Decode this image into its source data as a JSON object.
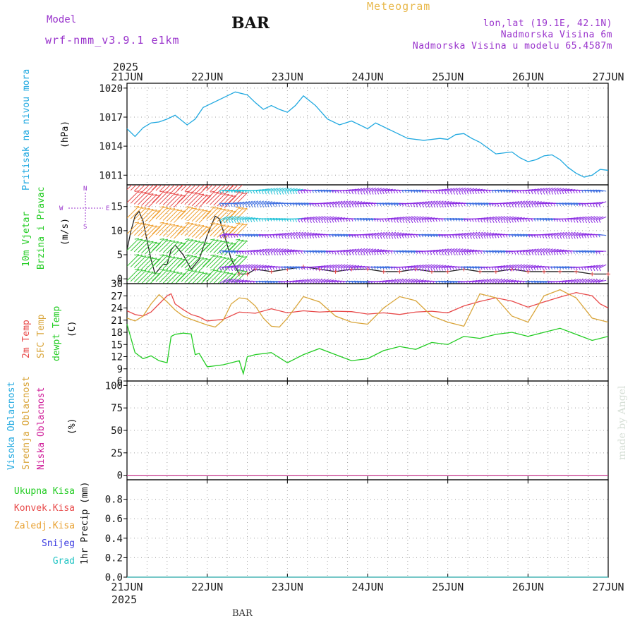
{
  "header": {
    "model_label": "Model",
    "model_name": "wrf-nmm_v3.9.1 e1km",
    "station": "BAR",
    "title": "Meteogram",
    "lonlat": "lon,lat (19.1E, 42.1N)",
    "elevation": "Nadmorska Visina 6m",
    "model_elevation": "Nadmorska Visina u modelu 65.4587m"
  },
  "footer": {
    "station": "BAR"
  },
  "watermark": "made by Angel",
  "colors": {
    "pressure": "#1fa8e0",
    "t2m": "#e84a4a",
    "sfc": "#d9a53a",
    "dewpt": "#22cc22",
    "wind_purple": "#8a2be2",
    "wind_blue": "#3f6fe0",
    "wind_cyan": "#27c3d8",
    "wind_green": "#35c735",
    "wind_orange": "#f0a030",
    "wind_red": "#e84a4a",
    "label_cyan": "#1fa8e0",
    "label_green": "#22cc22",
    "label_orange": "#e8a030",
    "label_red": "#e84a4a",
    "label_magenta": "#d0209a",
    "label_blue": "#3a3ae0",
    "label_teal": "#22c4c4",
    "label_purple": "#9933cc"
  },
  "time_axis": {
    "year": "2025",
    "ticks": [
      "21JUN",
      "22JUN",
      "23JUN",
      "24JUN",
      "25JUN",
      "26JUN",
      "27JUN"
    ]
  },
  "panels": {
    "pressure": {
      "label": "Pritisak na nivou mora",
      "unit": "(hPa)"
    },
    "wind": {
      "label_line1": "10m Vjetar",
      "label_line2": "Brzina i Pravac",
      "unit": "(m/s)",
      "compass": {
        "n": "N",
        "s": "S",
        "e": "E",
        "w": "W"
      }
    },
    "temp": {
      "label_2m": "2m Temp",
      "label_sfc": "SFC Temp",
      "label_dew": "dewpt Temp",
      "unit": "(C)"
    },
    "cloud": {
      "label_high": "Visoka Oblacnost",
      "label_mid": "Srednja Oblacnost",
      "label_low": "Niska Oblacnost",
      "unit": "(%)"
    },
    "precip": {
      "unit": "1hr Precip (mm)",
      "legend": [
        "Ukupna Kisa",
        "Konvek.Kisa",
        "Zaledj.Kisa",
        "Snijeg",
        "Grad"
      ]
    }
  },
  "chart_data": [
    {
      "type": "line",
      "title": "",
      "ylabel": "Pritisak na nivou mora (hPa)",
      "ylim": [
        1010,
        1020.5
      ],
      "yticks": [
        1011,
        1014,
        1017,
        1020
      ],
      "grid": true,
      "x_unit": "days since 21JUN 00UTC",
      "series": [
        {
          "name": "Pritisak na nivou mora",
          "x": [
            0,
            0.1,
            0.2,
            0.3,
            0.4,
            0.5,
            0.6,
            0.75,
            0.85,
            0.95,
            1.0,
            1.1,
            1.2,
            1.35,
            1.5,
            1.6,
            1.7,
            1.8,
            1.9,
            2.0,
            2.1,
            2.2,
            2.35,
            2.5,
            2.65,
            2.8,
            2.9,
            3.0,
            3.1,
            3.3,
            3.5,
            3.7,
            3.9,
            4.0,
            4.1,
            4.2,
            4.3,
            4.4,
            4.6,
            4.8,
            4.9,
            5.0,
            5.1,
            5.2,
            5.3,
            5.4,
            5.5,
            5.6,
            5.7,
            5.8,
            5.9,
            6.0
          ],
          "values": [
            1015.8,
            1015.0,
            1015.9,
            1016.4,
            1016.5,
            1016.8,
            1017.2,
            1016.2,
            1016.8,
            1018.0,
            1018.2,
            1018.6,
            1019.0,
            1019.6,
            1019.3,
            1018.5,
            1017.8,
            1018.2,
            1017.8,
            1017.5,
            1018.2,
            1019.2,
            1018.2,
            1016.8,
            1016.2,
            1016.6,
            1016.2,
            1015.8,
            1016.4,
            1015.6,
            1014.8,
            1014.6,
            1014.8,
            1014.7,
            1015.2,
            1015.3,
            1014.8,
            1014.4,
            1013.2,
            1013.4,
            1012.8,
            1012.4,
            1012.6,
            1013.0,
            1013.1,
            1012.6,
            1011.8,
            1011.2,
            1010.8,
            1011.0,
            1011.6,
            1011.5
          ]
        }
      ]
    },
    {
      "type": "line",
      "title": "",
      "ylabel": "10m Vjetar Brzina i Pravac (m/s)",
      "ylim": [
        -1,
        19.5
      ],
      "yticks": [
        0,
        5,
        10,
        15
      ],
      "grid": true,
      "series": [
        {
          "name": "10m Vjetar",
          "x": [
            0,
            0.05,
            0.1,
            0.15,
            0.2,
            0.25,
            0.3,
            0.35,
            0.4,
            0.45,
            0.5,
            0.55,
            0.6,
            0.7,
            0.8,
            0.9,
            1.0,
            1.05,
            1.1,
            1.15,
            1.2,
            1.25,
            1.3,
            1.4,
            1.5,
            1.6,
            1.8,
            2.0,
            2.2,
            2.4,
            2.6,
            2.8,
            3.0,
            3.2,
            3.4,
            3.6,
            3.8,
            4.0,
            4.2,
            4.4,
            4.6,
            4.8,
            5.0,
            5.2,
            5.4,
            5.6,
            5.8,
            6.0
          ],
          "values": [
            6,
            10,
            13,
            14,
            12,
            8,
            4,
            1,
            2,
            3,
            3,
            6,
            7,
            5,
            2,
            4,
            9,
            11,
            13,
            12.5,
            10,
            7,
            4,
            1,
            1,
            2,
            1.5,
            2,
            2.5,
            2,
            1.5,
            2,
            2,
            1.5,
            1.5,
            2,
            1.5,
            1.5,
            2,
            1.5,
            1.5,
            2,
            1.5,
            1.5,
            1.5,
            1.5,
            1,
            1
          ]
        }
      ]
    },
    {
      "type": "line",
      "title": "",
      "ylabel": "(C)",
      "ylim": [
        6,
        30
      ],
      "yticks": [
        6,
        9,
        12,
        15,
        18,
        21,
        24,
        27,
        30
      ],
      "grid": true,
      "series": [
        {
          "name": "2m Temp",
          "x": [
            0,
            0.1,
            0.2,
            0.3,
            0.4,
            0.5,
            0.55,
            0.6,
            0.7,
            0.8,
            0.9,
            1.0,
            1.2,
            1.4,
            1.6,
            1.8,
            2.0,
            2.2,
            2.4,
            2.6,
            2.8,
            3.0,
            3.2,
            3.4,
            3.6,
            3.8,
            4.0,
            4.2,
            4.4,
            4.6,
            4.8,
            5.0,
            5.2,
            5.4,
            5.6,
            5.8,
            5.9,
            6.0
          ],
          "values": [
            23.3,
            22.4,
            22.0,
            23.0,
            25.0,
            27.0,
            27.5,
            25.0,
            23.6,
            22.4,
            21.8,
            20.8,
            21.2,
            23.0,
            22.7,
            23.8,
            22.8,
            23.3,
            23.0,
            23.2,
            23.1,
            22.5,
            22.8,
            22.4,
            23.0,
            23.2,
            22.8,
            24.5,
            25.6,
            26.5,
            25.7,
            24.2,
            25.5,
            26.7,
            27.8,
            27.0,
            25.0,
            24.0
          ]
        },
        {
          "name": "SFC Temp",
          "x": [
            0,
            0.1,
            0.2,
            0.3,
            0.4,
            0.5,
            0.6,
            0.7,
            0.8,
            0.9,
            1.0,
            1.1,
            1.2,
            1.3,
            1.4,
            1.5,
            1.6,
            1.7,
            1.8,
            1.9,
            2.0,
            2.2,
            2.4,
            2.6,
            2.8,
            3.0,
            3.2,
            3.4,
            3.6,
            3.8,
            4.0,
            4.2,
            4.4,
            4.6,
            4.8,
            5.0,
            5.2,
            5.4,
            5.6,
            5.8,
            6.0
          ],
          "values": [
            21.5,
            20.8,
            22.0,
            25.0,
            27.3,
            25.5,
            23.5,
            22.0,
            21.2,
            20.5,
            19.8,
            19.3,
            21.0,
            25.0,
            26.5,
            26.2,
            24.5,
            21.5,
            19.5,
            19.3,
            21.5,
            26.8,
            25.5,
            22.0,
            20.5,
            20.0,
            24.0,
            26.8,
            25.8,
            22.0,
            20.5,
            19.5,
            27.5,
            26.5,
            22.0,
            20.5,
            27.0,
            28.5,
            26.5,
            21.5,
            20.5
          ]
        },
        {
          "name": "dewpt Temp",
          "x": [
            0,
            0.1,
            0.2,
            0.3,
            0.4,
            0.5,
            0.55,
            0.6,
            0.7,
            0.8,
            0.85,
            0.9,
            1.0,
            1.2,
            1.4,
            1.45,
            1.5,
            1.6,
            1.8,
            2.0,
            2.2,
            2.4,
            2.6,
            2.8,
            3.0,
            3.2,
            3.4,
            3.6,
            3.8,
            4.0,
            4.2,
            4.4,
            4.6,
            4.8,
            5.0,
            5.2,
            5.4,
            5.6,
            5.8,
            6.0
          ],
          "values": [
            20.0,
            13.0,
            11.5,
            12.2,
            11.0,
            10.5,
            17.0,
            17.5,
            17.8,
            17.6,
            12.5,
            12.8,
            9.5,
            10.0,
            11.0,
            7.8,
            12.0,
            12.5,
            13.0,
            10.5,
            12.5,
            14.0,
            12.5,
            11.0,
            11.5,
            13.5,
            14.5,
            13.8,
            15.5,
            15.0,
            17.0,
            16.5,
            17.5,
            18.0,
            17.0,
            18.0,
            19.0,
            17.5,
            16.0,
            17.0
          ]
        }
      ]
    },
    {
      "type": "line",
      "title": "",
      "ylabel": "(%)",
      "ylim": [
        -5,
        105
      ],
      "yticks": [
        0,
        25,
        50,
        75,
        100
      ],
      "grid": true,
      "series": [
        {
          "name": "Visoka Oblacnost",
          "x": [
            0,
            6
          ],
          "values": [
            0,
            0
          ]
        },
        {
          "name": "Srednja Oblacnost",
          "x": [
            0,
            6
          ],
          "values": [
            0,
            0
          ]
        },
        {
          "name": "Niska Oblacnost",
          "x": [
            0,
            6
          ],
          "values": [
            0,
            0
          ]
        }
      ]
    },
    {
      "type": "line",
      "title": "",
      "ylabel": "1hr Precip (mm)",
      "ylim": [
        0,
        1.0
      ],
      "yticks": [
        0,
        0.2,
        0.4,
        0.6,
        0.8
      ],
      "grid": true,
      "series": [
        {
          "name": "Ukupna Kisa",
          "x": [
            0,
            6
          ],
          "values": [
            0,
            0
          ]
        },
        {
          "name": "Konvek.Kisa",
          "x": [
            0,
            6
          ],
          "values": [
            0,
            0
          ]
        },
        {
          "name": "Zaledj.Kisa",
          "x": [
            0,
            6
          ],
          "values": [
            0,
            0
          ]
        },
        {
          "name": "Snijeg",
          "x": [
            0,
            6
          ],
          "values": [
            0,
            0
          ]
        },
        {
          "name": "Grad",
          "x": [
            0,
            6
          ],
          "values": [
            0,
            0
          ]
        }
      ]
    }
  ]
}
